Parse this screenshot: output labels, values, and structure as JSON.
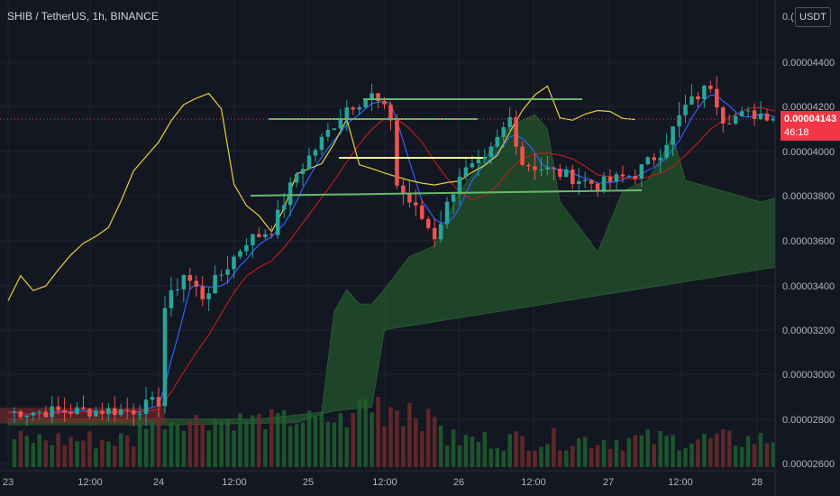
{
  "header": {
    "title": "SHIB / TetherUS, 1h, BINANCE"
  },
  "axis": {
    "currency": "USDT",
    "top_partial": "0.("
  },
  "last_price": {
    "value": "0.00004143",
    "countdown": "46:18"
  },
  "chart_data": {
    "type": "candlestick",
    "y_ticks": [
      "0.00004400",
      "0.00004200",
      "0.00004000",
      "0.00003800",
      "0.00003600",
      "0.00003400",
      "0.00003200",
      "0.00003000",
      "0.00002800",
      "0.00002600"
    ],
    "x_ticks": [
      "23",
      "12:00",
      "24",
      "12:00",
      "25",
      "12:00",
      "26",
      "12:00",
      "27",
      "12:00",
      "28"
    ],
    "ylim": [
      2.58e-05,
      4.48e-05
    ],
    "colors": {
      "up": "#26a69a",
      "down": "#ef5350",
      "tenkan": "#2962ff",
      "kijun": "#b71c1c",
      "chikou": "#e6d13c",
      "cloud_bull": "#2e7d32",
      "cloud_bear": "#8b2a2a",
      "hline_green": "#66bb6a",
      "hline_yellow": "#fff59d"
    },
    "horizontal_levels": [
      {
        "price": 4.225e-05,
        "from": "25 12:00",
        "to": "26 15:00",
        "color": "green"
      },
      {
        "price": 4.17e-05,
        "from": "24 13:00",
        "to": "26 04:00",
        "color": "green"
      },
      {
        "price": 3.96e-05,
        "from": "25 04:00",
        "to": "26 04:00",
        "color": "yellow"
      }
    ],
    "trendline": {
      "from": [
        "24 12:00",
        3.78e-05
      ],
      "to": [
        "27 06:00",
        3.82e-05
      ],
      "color": "green"
    }
  }
}
